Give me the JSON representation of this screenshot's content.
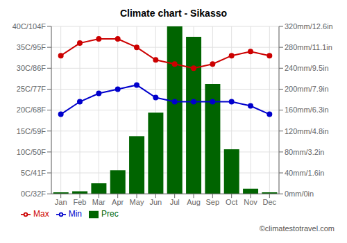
{
  "chart_data": {
    "type": "bar",
    "title": "Climate chart - Sikasso",
    "categories": [
      "Jan",
      "Feb",
      "Mar",
      "Apr",
      "May",
      "Jun",
      "Jul",
      "Aug",
      "Sep",
      "Oct",
      "Nov",
      "Dec"
    ],
    "series": [
      {
        "name": "Prec",
        "type": "bar",
        "axis": "y2",
        "color": "#006400",
        "values": [
          3,
          5,
          20,
          45,
          110,
          155,
          320,
          300,
          210,
          85,
          10,
          3
        ]
      },
      {
        "name": "Min",
        "type": "line",
        "axis": "y",
        "color": "#0000cc",
        "marker": "circle",
        "values": [
          19,
          22,
          24,
          25,
          26,
          23,
          22,
          22,
          22,
          22,
          21,
          19
        ]
      },
      {
        "name": "Max",
        "type": "line",
        "axis": "y",
        "color": "#cc0000",
        "marker": "circle",
        "values": [
          33,
          36,
          37,
          37,
          35,
          32,
          31,
          30,
          31,
          33,
          34,
          33
        ]
      }
    ],
    "ylim": [
      0,
      40
    ],
    "yticks": [
      {
        "value": 0,
        "label": "0C/32F"
      },
      {
        "value": 5,
        "label": "5C/41F"
      },
      {
        "value": 10,
        "label": "10C/50F"
      },
      {
        "value": 15,
        "label": "15C/59F"
      },
      {
        "value": 20,
        "label": "20C/68F"
      },
      {
        "value": 25,
        "label": "25C/77F"
      },
      {
        "value": 30,
        "label": "30C/86F"
      },
      {
        "value": 35,
        "label": "35C/95F"
      },
      {
        "value": 40,
        "label": "40C/104F"
      }
    ],
    "y2lim": [
      0,
      320
    ],
    "y2ticks": [
      {
        "value": 0,
        "label": "0mm/0in"
      },
      {
        "value": 40,
        "label": "40mm/1.6in"
      },
      {
        "value": 80,
        "label": "80mm/3.2in"
      },
      {
        "value": 120,
        "label": "120mm/4.8in"
      },
      {
        "value": 160,
        "label": "160mm/6.3in"
      },
      {
        "value": 200,
        "label": "200mm/7.9in"
      },
      {
        "value": 240,
        "label": "240mm/9.5in"
      },
      {
        "value": 280,
        "label": "280mm/11.1in"
      },
      {
        "value": 320,
        "label": "320mm/12.6in"
      }
    ],
    "grid": true,
    "legend": "bottom",
    "annotations": [
      "©climatestotravel.com"
    ]
  }
}
